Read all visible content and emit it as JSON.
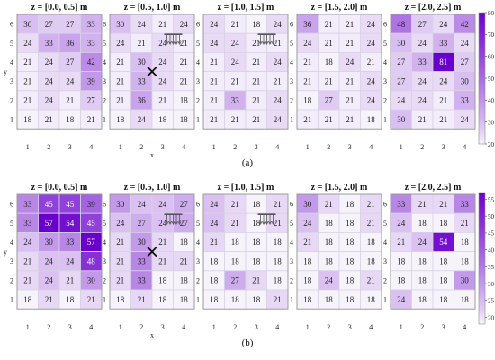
{
  "colors": {
    "cmap_low": "#f7f3fb",
    "cmap_high": "#6a00cc",
    "grid": "#d9d2e6",
    "frame": "#8c8c8c",
    "arrow": "#555555",
    "cross": "#111111"
  },
  "chart_data": [
    {
      "type": "heatmap",
      "label": "(a)",
      "xlabel": "x",
      "ylabel": "y",
      "x_ticks": [
        "1",
        "2",
        "3",
        "4"
      ],
      "y_ticks": [
        "6",
        "5",
        "4",
        "3",
        "2",
        "1"
      ],
      "colorbar": {
        "ticks": [
          "80",
          "70",
          "60",
          "50",
          "40",
          "30",
          "20"
        ],
        "min": 20,
        "max": 80
      },
      "panels": [
        {
          "title": "z = [0.0, 0.5] m",
          "marker": "none",
          "rows": [
            [
              30,
              27,
              27,
              33
            ],
            [
              24,
              33,
              36,
              33
            ],
            [
              21,
              24,
              27,
              42
            ],
            [
              21,
              24,
              24,
              39
            ],
            [
              21,
              24,
              21,
              27
            ],
            [
              18,
              21,
              18,
              21
            ]
          ]
        },
        {
          "title": "z = [0.5, 1.0] m",
          "marker": "source-cross",
          "rows": [
            [
              30,
              24,
              21,
              24
            ],
            [
              24,
              21,
              24,
              21
            ],
            [
              21,
              30,
              24,
              21
            ],
            [
              21,
              33,
              24,
              21
            ],
            [
              21,
              36,
              21,
              18
            ],
            [
              18,
              24,
              18,
              18
            ]
          ]
        },
        {
          "title": "z = [1.0, 1.5] m",
          "marker": "source",
          "rows": [
            [
              24,
              21,
              18,
              24
            ],
            [
              24,
              24,
              21,
              21
            ],
            [
              21,
              24,
              21,
              24
            ],
            [
              21,
              21,
              21,
              21
            ],
            [
              21,
              33,
              21,
              24
            ],
            [
              21,
              21,
              21,
              24
            ]
          ]
        },
        {
          "title": "z = [1.5, 2.0] m",
          "marker": "none",
          "rows": [
            [
              36,
              21,
              21,
              24
            ],
            [
              24,
              21,
              21,
              24
            ],
            [
              21,
              18,
              24,
              21
            ],
            [
              21,
              21,
              21,
              24
            ],
            [
              18,
              27,
              21,
              24
            ],
            [
              21,
              21,
              21,
              18
            ]
          ]
        },
        {
          "title": "z = [2.0, 2.5] m",
          "marker": "none",
          "rows": [
            [
              48,
              27,
              24,
              42
            ],
            [
              30,
              24,
              33,
              24
            ],
            [
              27,
              33,
              81,
              27
            ],
            [
              27,
              24,
              24,
              30
            ],
            [
              24,
              24,
              21,
              33
            ],
            [
              30,
              21,
              21,
              24
            ]
          ]
        }
      ]
    },
    {
      "type": "heatmap",
      "label": "(b)",
      "xlabel": "x",
      "ylabel": "y",
      "x_ticks": [
        "1",
        "2",
        "3",
        "4"
      ],
      "y_ticks": [
        "6",
        "5",
        "4",
        "3",
        "2",
        "1"
      ],
      "colorbar": {
        "ticks": [
          "55",
          "50",
          "45",
          "40",
          "35",
          "30",
          "25",
          "20"
        ],
        "min": 18,
        "max": 57
      },
      "panels": [
        {
          "title": "z = [0.0, 0.5] m",
          "marker": "none",
          "rows": [
            [
              33,
              45,
              45,
              39
            ],
            [
              33,
              57,
              54,
              45
            ],
            [
              24,
              30,
              33,
              57
            ],
            [
              21,
              24,
              24,
              48
            ],
            [
              21,
              24,
              21,
              30
            ],
            [
              18,
              21,
              18,
              21
            ]
          ]
        },
        {
          "title": "z = [0.5, 1.0] m",
          "marker": "source-cross",
          "rows": [
            [
              30,
              24,
              24,
              27
            ],
            [
              24,
              27,
              24,
              27
            ],
            [
              21,
              30,
              21,
              18
            ],
            [
              21,
              33,
              21,
              21
            ],
            [
              21,
              33,
              18,
              18
            ],
            [
              18,
              21,
              18,
              18
            ]
          ]
        },
        {
          "title": "z = [1.0, 1.5] m",
          "marker": "source",
          "rows": [
            [
              24,
              21,
              18,
              21
            ],
            [
              24,
              21,
              18,
              21
            ],
            [
              21,
              18,
              18,
              18
            ],
            [
              18,
              18,
              18,
              18
            ],
            [
              18,
              27,
              21,
              18
            ],
            [
              18,
              18,
              18,
              21
            ]
          ]
        },
        {
          "title": "z = [1.5, 2.0] m",
          "marker": "none",
          "rows": [
            [
              30,
              21,
              18,
              21
            ],
            [
              24,
              18,
              18,
              21
            ],
            [
              21,
              18,
              18,
              18
            ],
            [
              18,
              18,
              18,
              18
            ],
            [
              18,
              24,
              18,
              21
            ],
            [
              18,
              18,
              18,
              18
            ]
          ]
        },
        {
          "title": "z = [2.0, 2.5] m",
          "marker": "none",
          "rows": [
            [
              33,
              21,
              21,
              33
            ],
            [
              24,
              18,
              18,
              21
            ],
            [
              21,
              24,
              54,
              18
            ],
            [
              18,
              18,
              18,
              18
            ],
            [
              18,
              18,
              18,
              30
            ],
            [
              24,
              18,
              18,
              18
            ]
          ]
        }
      ]
    }
  ]
}
